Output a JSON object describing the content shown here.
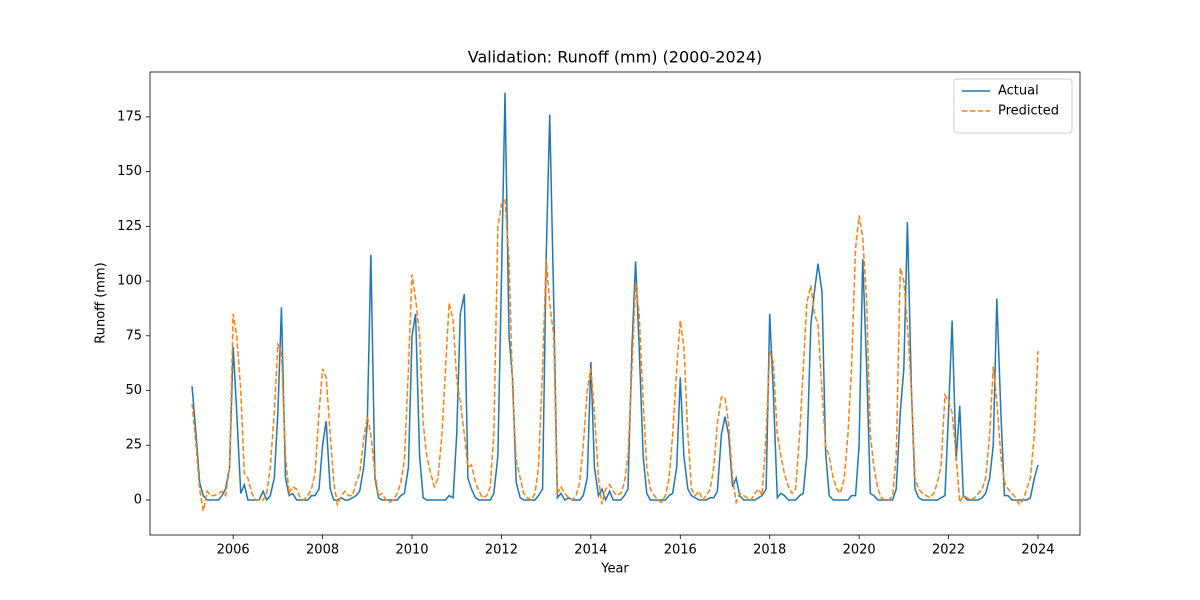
{
  "chart_data": {
    "type": "line",
    "title": "Validation: Runoff (mm) (2000-2024)",
    "xlabel": "Year",
    "ylabel": "Runoff (mm)",
    "xlim": [
      2004.14,
      2024.94
    ],
    "ylim": [
      -16,
      195.5
    ],
    "xticks": [
      2006,
      2008,
      2010,
      2012,
      2014,
      2016,
      2018,
      2020,
      2022,
      2024
    ],
    "yticks": [
      0,
      25,
      50,
      75,
      100,
      125,
      150,
      175
    ],
    "legend": "upper right",
    "grid": false,
    "x": [
      2005.08,
      2005.17,
      2005.25,
      2005.33,
      2005.42,
      2005.5,
      2005.58,
      2005.67,
      2005.75,
      2005.83,
      2005.92,
      2006,
      2006.08,
      2006.17,
      2006.25,
      2006.33,
      2006.42,
      2006.5,
      2006.58,
      2006.67,
      2006.75,
      2006.83,
      2006.92,
      2007,
      2007.08,
      2007.17,
      2007.25,
      2007.33,
      2007.42,
      2007.5,
      2007.58,
      2007.67,
      2007.75,
      2007.83,
      2007.92,
      2008,
      2008.08,
      2008.17,
      2008.25,
      2008.33,
      2008.42,
      2008.5,
      2008.58,
      2008.67,
      2008.75,
      2008.83,
      2008.92,
      2009,
      2009.08,
      2009.17,
      2009.25,
      2009.33,
      2009.42,
      2009.5,
      2009.58,
      2009.67,
      2009.75,
      2009.83,
      2009.92,
      2010,
      2010.08,
      2010.17,
      2010.25,
      2010.33,
      2010.42,
      2010.5,
      2010.58,
      2010.67,
      2010.75,
      2010.83,
      2010.92,
      2011,
      2011.08,
      2011.17,
      2011.25,
      2011.33,
      2011.42,
      2011.5,
      2011.58,
      2011.67,
      2011.75,
      2011.83,
      2011.92,
      2012,
      2012.08,
      2012.17,
      2012.25,
      2012.33,
      2012.42,
      2012.5,
      2012.58,
      2012.67,
      2012.75,
      2012.83,
      2012.92,
      2013,
      2013.08,
      2013.17,
      2013.25,
      2013.33,
      2013.42,
      2013.5,
      2013.58,
      2013.67,
      2013.75,
      2013.83,
      2013.92,
      2014,
      2014.08,
      2014.17,
      2014.25,
      2014.33,
      2014.42,
      2014.5,
      2014.58,
      2014.67,
      2014.75,
      2014.83,
      2014.92,
      2015,
      2015.08,
      2015.17,
      2015.25,
      2015.33,
      2015.42,
      2015.5,
      2015.58,
      2015.67,
      2015.75,
      2015.83,
      2015.92,
      2016,
      2016.08,
      2016.17,
      2016.25,
      2016.33,
      2016.42,
      2016.5,
      2016.58,
      2016.67,
      2016.75,
      2016.83,
      2016.92,
      2017,
      2017.08,
      2017.17,
      2017.25,
      2017.33,
      2017.42,
      2017.5,
      2017.58,
      2017.67,
      2017.75,
      2017.83,
      2017.92,
      2018,
      2018.08,
      2018.17,
      2018.25,
      2018.33,
      2018.42,
      2018.5,
      2018.58,
      2018.67,
      2018.75,
      2018.83,
      2018.92,
      2019,
      2019.08,
      2019.17,
      2019.25,
      2019.33,
      2019.42,
      2019.5,
      2019.58,
      2019.67,
      2019.75,
      2019.83,
      2019.92,
      2020,
      2020.08,
      2020.17,
      2020.25,
      2020.33,
      2020.42,
      2020.5,
      2020.58,
      2020.67,
      2020.75,
      2020.83,
      2020.92,
      2021,
      2021.08,
      2021.17,
      2021.25,
      2021.33,
      2021.42,
      2021.5,
      2021.58,
      2021.67,
      2021.75,
      2021.83,
      2021.92,
      2022,
      2022.08,
      2022.17,
      2022.25,
      2022.33,
      2022.42,
      2022.5,
      2022.58,
      2022.67,
      2022.75,
      2022.83,
      2022.92,
      2023,
      2023.08,
      2023.17,
      2023.25,
      2023.33,
      2023.42,
      2023.5,
      2023.58,
      2023.67,
      2023.75,
      2023.83,
      2023.92,
      2024
    ],
    "series": [
      {
        "name": "Actual",
        "color": "#1f77b4",
        "dash": false,
        "values": [
          52,
          30,
          8,
          2,
          0,
          0,
          0,
          0,
          2,
          5,
          15,
          70,
          40,
          3,
          7,
          0,
          0,
          0,
          0,
          4,
          0,
          2,
          10,
          40,
          88,
          10,
          2,
          3,
          0,
          0,
          0,
          0,
          2,
          2,
          5,
          25,
          36,
          5,
          0,
          0,
          1,
          0,
          0,
          1,
          2,
          4,
          15,
          35,
          112,
          10,
          1,
          0,
          0,
          0,
          0,
          0,
          2,
          3,
          15,
          75,
          85,
          20,
          1,
          0,
          0,
          0,
          0,
          0,
          0,
          2,
          1,
          30,
          85,
          94,
          10,
          5,
          1,
          0,
          0,
          0,
          0,
          3,
          20,
          100,
          186,
          75,
          55,
          8,
          1,
          0,
          0,
          0,
          0,
          2,
          5,
          110,
          176,
          90,
          1,
          3,
          0,
          1,
          0,
          0,
          0,
          2,
          10,
          63,
          15,
          2,
          5,
          0,
          4,
          0,
          0,
          0,
          2,
          5,
          70,
          109,
          70,
          20,
          3,
          0,
          0,
          0,
          0,
          0,
          2,
          3,
          15,
          56,
          20,
          5,
          2,
          1,
          0,
          0,
          0,
          1,
          1,
          4,
          30,
          38,
          30,
          6,
          10,
          2,
          0,
          0,
          0,
          0,
          1,
          2,
          5,
          85,
          50,
          1,
          3,
          2,
          0,
          0,
          0,
          2,
          3,
          20,
          80,
          95,
          108,
          95,
          22,
          2,
          0,
          0,
          0,
          0,
          0,
          2,
          2,
          25,
          110,
          60,
          3,
          2,
          0,
          0,
          0,
          0,
          0,
          5,
          40,
          60,
          127,
          50,
          5,
          1,
          0,
          0,
          0,
          0,
          0,
          1,
          2,
          40,
          82,
          18,
          43,
          2,
          0,
          0,
          0,
          0,
          1,
          3,
          10,
          25,
          92,
          40,
          2,
          2,
          0,
          0,
          0,
          0,
          0,
          1,
          10,
          16
        ]
      },
      {
        "name": "Predicted",
        "color": "#ff7f0e",
        "dash": true,
        "values": [
          44,
          25,
          5,
          -5,
          4,
          2,
          2,
          3,
          4,
          2,
          15,
          85,
          75,
          50,
          12,
          10,
          3,
          0,
          0,
          0,
          3,
          15,
          40,
          71,
          68,
          20,
          3,
          6,
          5,
          1,
          0,
          2,
          5,
          12,
          40,
          60,
          56,
          30,
          8,
          -2,
          2,
          4,
          2,
          2,
          8,
          12,
          28,
          38,
          30,
          12,
          2,
          3,
          0,
          -1,
          0,
          3,
          8,
          18,
          60,
          103,
          92,
          75,
          35,
          20,
          12,
          6,
          10,
          30,
          60,
          90,
          82,
          55,
          45,
          30,
          15,
          16,
          8,
          4,
          1,
          2,
          6,
          30,
          125,
          135,
          137,
          110,
          50,
          18,
          10,
          3,
          1,
          0,
          3,
          15,
          60,
          110,
          90,
          75,
          3,
          6,
          3,
          1,
          0,
          2,
          8,
          25,
          50,
          60,
          40,
          10,
          -2,
          5,
          7,
          4,
          2,
          3,
          8,
          20,
          60,
          99,
          85,
          45,
          15,
          5,
          2,
          0,
          -1,
          2,
          10,
          30,
          60,
          82,
          70,
          30,
          5,
          2,
          4,
          0,
          2,
          5,
          15,
          35,
          47,
          47,
          35,
          10,
          -1,
          3,
          2,
          1,
          0,
          3,
          5,
          2,
          30,
          68,
          63,
          30,
          20,
          12,
          6,
          3,
          5,
          30,
          60,
          90,
          98,
          85,
          80,
          50,
          25,
          20,
          10,
          5,
          3,
          10,
          30,
          60,
          115,
          130,
          120,
          90,
          30,
          15,
          5,
          1,
          0,
          0,
          2,
          20,
          106,
          100,
          80,
          50,
          10,
          5,
          3,
          2,
          1,
          3,
          8,
          15,
          48,
          45,
          40,
          20,
          -1,
          2,
          1,
          0,
          1,
          3,
          5,
          10,
          30,
          61,
          45,
          20,
          8,
          5,
          3,
          1,
          -2,
          0,
          5,
          10,
          30,
          68
        ]
      }
    ]
  }
}
